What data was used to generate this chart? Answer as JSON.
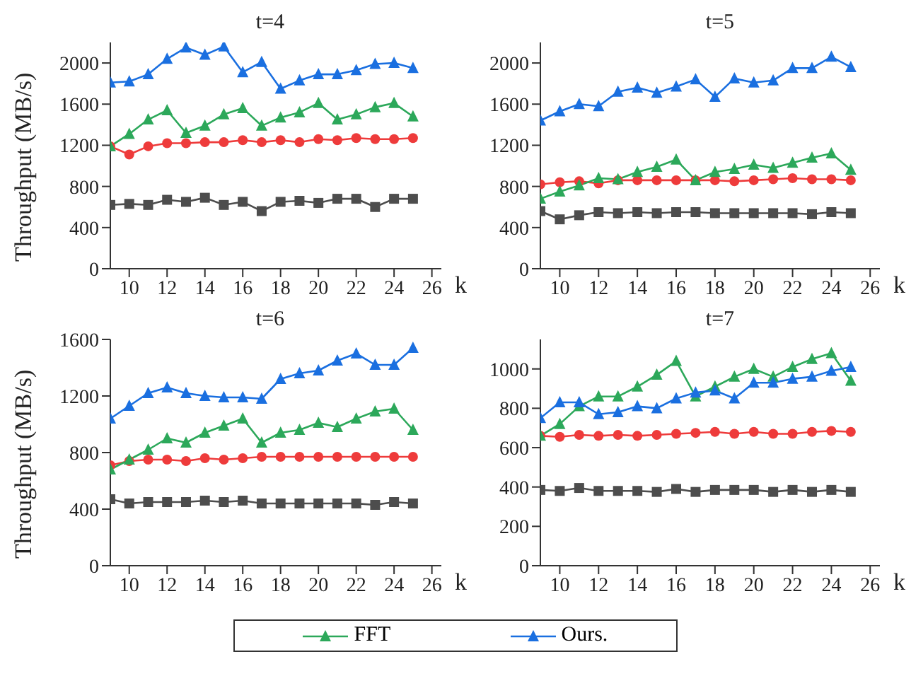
{
  "chart_data": [
    {
      "type": "line",
      "title": "t=4",
      "xlabel": "k",
      "ylabel": "Throughput (MB/s)",
      "x": [
        9,
        10,
        11,
        12,
        13,
        14,
        15,
        16,
        17,
        18,
        19,
        20,
        21,
        22,
        23,
        24,
        25
      ],
      "xlim": [
        9,
        26.5
      ],
      "xticks": [
        10,
        12,
        14,
        16,
        18,
        20,
        22,
        24,
        26
      ],
      "ylim": [
        0,
        2200
      ],
      "yticks": [
        0,
        400,
        800,
        1200,
        1600,
        2000
      ],
      "legend": "bottom",
      "series": [
        {
          "color": "#4d4d4d",
          "marker": "square",
          "values": [
            620,
            630,
            620,
            670,
            650,
            690,
            620,
            650,
            560,
            650,
            660,
            640,
            680,
            680,
            600,
            680,
            680
          ]
        },
        {
          "color": "#ee3b3b",
          "marker": "circle",
          "values": [
            1190,
            1110,
            1190,
            1220,
            1220,
            1230,
            1230,
            1250,
            1230,
            1250,
            1230,
            1260,
            1250,
            1270,
            1260,
            1260,
            1270
          ]
        },
        {
          "name": "FFT",
          "color": "#2ca85a",
          "marker": "triangle",
          "values": [
            1190,
            1310,
            1450,
            1540,
            1320,
            1390,
            1500,
            1560,
            1390,
            1470,
            1520,
            1610,
            1450,
            1500,
            1570,
            1610,
            1480
          ]
        },
        {
          "name": "Ours.",
          "color": "#1a6fe0",
          "marker": "triangle",
          "values": [
            1810,
            1820,
            1890,
            2040,
            2150,
            2080,
            2160,
            1910,
            2010,
            1750,
            1830,
            1890,
            1890,
            1930,
            1990,
            2000,
            1950
          ]
        }
      ]
    },
    {
      "type": "line",
      "title": "t=5",
      "xlabel": "k",
      "x": [
        9,
        10,
        11,
        12,
        13,
        14,
        15,
        16,
        17,
        18,
        19,
        20,
        21,
        22,
        23,
        24,
        25
      ],
      "xlim": [
        9,
        26.5
      ],
      "xticks": [
        10,
        12,
        14,
        16,
        18,
        20,
        22,
        24,
        26
      ],
      "ylim": [
        0,
        2200
      ],
      "yticks": [
        0,
        400,
        800,
        1200,
        1600,
        2000
      ],
      "series": [
        {
          "color": "#4d4d4d",
          "marker": "square",
          "values": [
            560,
            480,
            520,
            550,
            540,
            550,
            540,
            550,
            550,
            540,
            540,
            540,
            540,
            540,
            530,
            550,
            540
          ]
        },
        {
          "color": "#ee3b3b",
          "marker": "circle",
          "values": [
            820,
            840,
            850,
            830,
            860,
            860,
            860,
            860,
            860,
            860,
            850,
            860,
            870,
            880,
            870,
            870,
            860
          ]
        },
        {
          "color": "#2ca85a",
          "marker": "triangle",
          "values": [
            680,
            750,
            810,
            880,
            870,
            940,
            990,
            1060,
            860,
            940,
            970,
            1010,
            980,
            1030,
            1080,
            1120,
            960
          ]
        },
        {
          "color": "#1a6fe0",
          "marker": "triangle",
          "values": [
            1440,
            1530,
            1600,
            1580,
            1720,
            1760,
            1710,
            1770,
            1840,
            1670,
            1850,
            1810,
            1830,
            1950,
            1950,
            2060,
            1960
          ]
        }
      ]
    },
    {
      "type": "line",
      "title": "t=6",
      "xlabel": "k",
      "ylabel": "Throughput (MB/s)",
      "x": [
        9,
        10,
        11,
        12,
        13,
        14,
        15,
        16,
        17,
        18,
        19,
        20,
        21,
        22,
        23,
        24,
        25
      ],
      "xlim": [
        9,
        26.5
      ],
      "xticks": [
        10,
        12,
        14,
        16,
        18,
        20,
        22,
        24,
        26
      ],
      "ylim": [
        0,
        1600
      ],
      "yticks": [
        0,
        400,
        800,
        1200,
        1600
      ],
      "series": [
        {
          "color": "#4d4d4d",
          "marker": "square",
          "values": [
            470,
            440,
            450,
            450,
            450,
            460,
            450,
            460,
            440,
            440,
            440,
            440,
            440,
            440,
            430,
            450,
            440
          ]
        },
        {
          "color": "#ee3b3b",
          "marker": "circle",
          "values": [
            710,
            740,
            750,
            750,
            740,
            760,
            750,
            760,
            770,
            770,
            770,
            770,
            770,
            770,
            770,
            770,
            770
          ]
        },
        {
          "color": "#2ca85a",
          "marker": "triangle",
          "values": [
            680,
            750,
            820,
            900,
            870,
            940,
            990,
            1040,
            870,
            940,
            960,
            1010,
            980,
            1040,
            1090,
            1110,
            960
          ]
        },
        {
          "color": "#1a6fe0",
          "marker": "triangle",
          "values": [
            1040,
            1130,
            1220,
            1260,
            1220,
            1200,
            1190,
            1190,
            1180,
            1320,
            1360,
            1380,
            1450,
            1500,
            1420,
            1420,
            1540
          ]
        }
      ]
    },
    {
      "type": "line",
      "title": "t=7",
      "xlabel": "k",
      "x": [
        9,
        10,
        11,
        12,
        13,
        14,
        15,
        16,
        17,
        18,
        19,
        20,
        21,
        22,
        23,
        24,
        25
      ],
      "xlim": [
        9,
        26.5
      ],
      "xticks": [
        10,
        12,
        14,
        16,
        18,
        20,
        22,
        24,
        26
      ],
      "ylim": [
        0,
        1150
      ],
      "yticks": [
        0,
        200,
        400,
        600,
        800,
        1000
      ],
      "series": [
        {
          "color": "#4d4d4d",
          "marker": "square",
          "values": [
            385,
            380,
            395,
            380,
            380,
            380,
            375,
            390,
            375,
            385,
            385,
            385,
            375,
            385,
            375,
            385,
            375
          ]
        },
        {
          "color": "#ee3b3b",
          "marker": "circle",
          "values": [
            660,
            655,
            665,
            660,
            665,
            660,
            665,
            670,
            675,
            680,
            670,
            680,
            670,
            670,
            680,
            685,
            680
          ]
        },
        {
          "color": "#2ca85a",
          "marker": "triangle",
          "values": [
            660,
            720,
            810,
            860,
            860,
            910,
            970,
            1040,
            860,
            910,
            960,
            1000,
            960,
            1010,
            1050,
            1080,
            940
          ]
        },
        {
          "color": "#1a6fe0",
          "marker": "triangle",
          "values": [
            750,
            830,
            830,
            770,
            780,
            810,
            800,
            850,
            880,
            890,
            850,
            930,
            930,
            950,
            960,
            990,
            1010
          ]
        }
      ]
    }
  ]
}
